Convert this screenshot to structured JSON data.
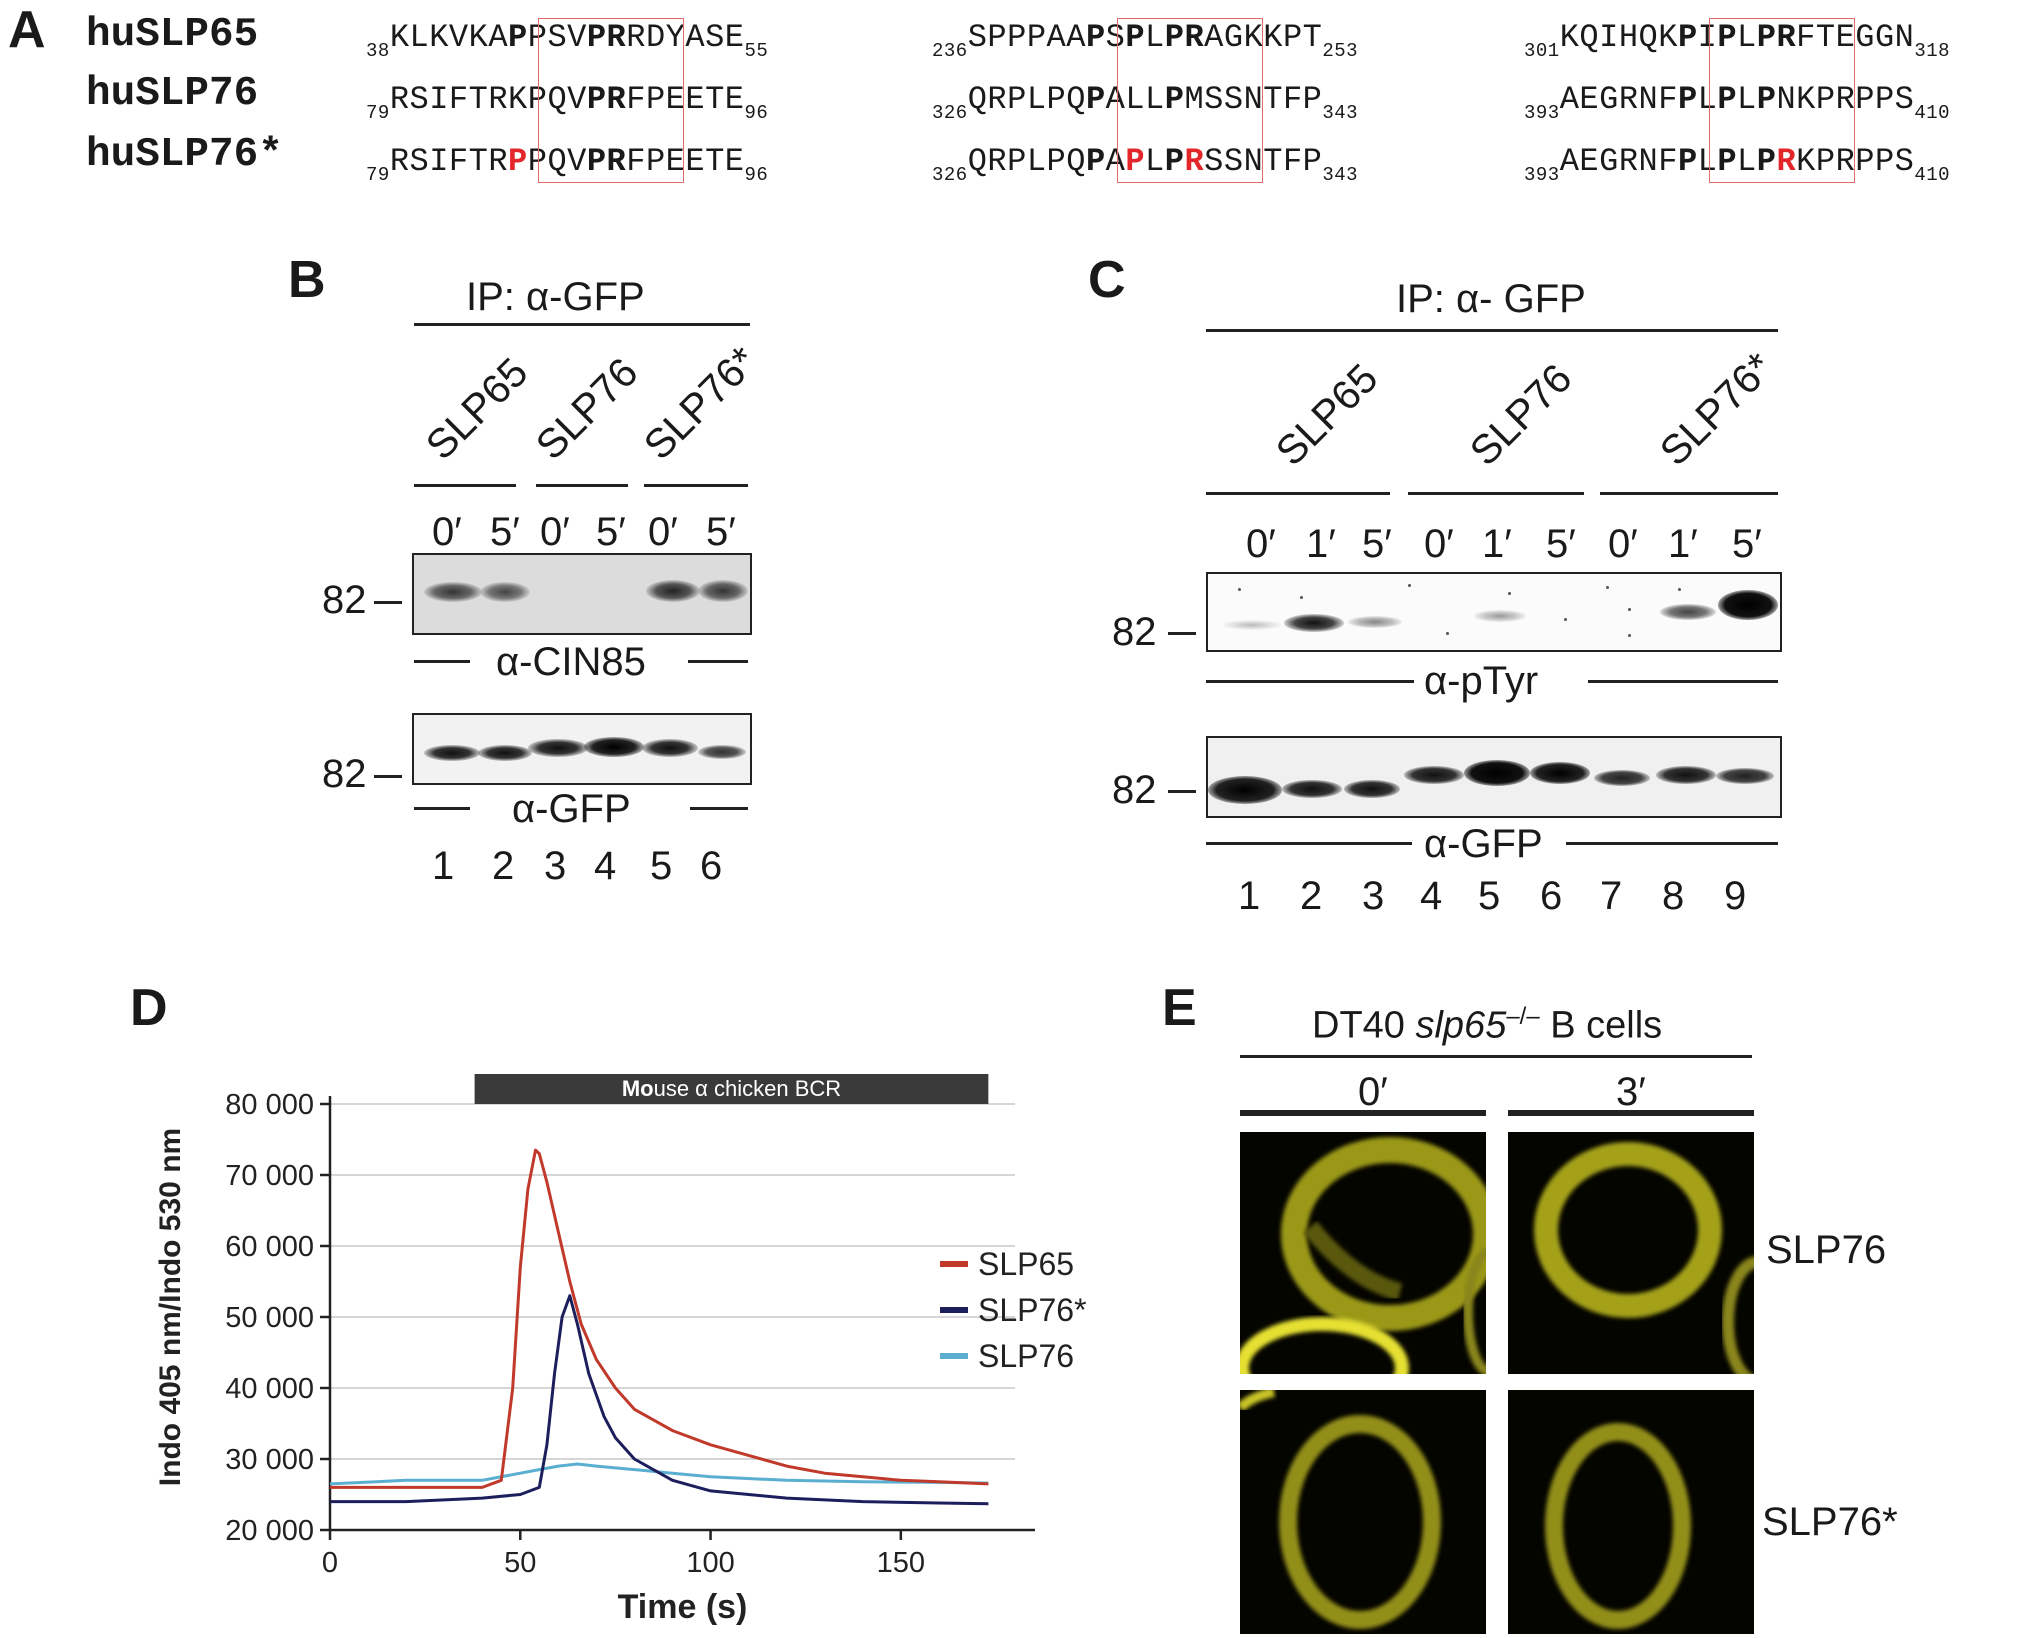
{
  "panels": {
    "A": "A",
    "B": "B",
    "C": "C",
    "D": "D",
    "E": "E"
  },
  "panelA": {
    "names": [
      "huSLP65",
      "huSLP76",
      "huSLP76*"
    ]
  },
  "panelB": {
    "ip": "IP: α-GFP",
    "samples": [
      "SLP65",
      "SLP76",
      "SLP76*"
    ],
    "times": [
      "0′",
      "5′",
      "0′",
      "5′",
      "0′",
      "5′"
    ],
    "mw1": "82",
    "mw2": "82",
    "blot1_label": "α-CIN85",
    "blot2_label": "α-GFP",
    "lanes": [
      "1",
      "2",
      "3",
      "4",
      "5",
      "6"
    ]
  },
  "panelC": {
    "ip": "IP: α- GFP",
    "samples": [
      "SLP65",
      "SLP76",
      "SLP76*"
    ],
    "times": [
      "0′",
      "1′",
      "5′",
      "0′",
      "1′",
      "5′",
      "0′",
      "1′",
      "5′"
    ],
    "mw1": "82",
    "mw2": "82",
    "blot1_label": "α-pTyr",
    "blot2_label": "α-GFP",
    "lanes": [
      "1",
      "2",
      "3",
      "4",
      "5",
      "6",
      "7",
      "8",
      "9"
    ]
  },
  "panelE": {
    "title_pre": "DT40 ",
    "title_gene": "slp65",
    "title_sup": "–/–",
    "title_post": " B cells",
    "times": [
      "0′",
      "3′"
    ],
    "rows": [
      "SLP76",
      "SLP76*"
    ]
  },
  "chart_data": {
    "type": "line",
    "title": "",
    "bar_label_bold": "Mo",
    "bar_label_rest": "use α chicken BCR",
    "stimulus_start": 38,
    "stimulus_end": 173,
    "xlabel": "Time (s)",
    "ylabel": "Indo 405 nm/Indo 530 nm",
    "xlim": [
      0,
      180
    ],
    "ylim": [
      20000,
      80000
    ],
    "xticks": [
      0,
      50,
      100,
      150
    ],
    "yticks": [
      20000,
      30000,
      40000,
      50000,
      60000,
      70000,
      80000
    ],
    "xtick_labels": [
      "0",
      "50",
      "100",
      "150"
    ],
    "ytick_labels": [
      "20 000",
      "30 000",
      "40 000",
      "50 000",
      "60 000",
      "70 000",
      "80 000"
    ],
    "grid": "horizontal",
    "legend_position": "right",
    "series": [
      {
        "name": "SLP65",
        "color": "#c0392b",
        "x": [
          0,
          20,
          40,
          45,
          48,
          50,
          52,
          54,
          55,
          57,
          60,
          63,
          66,
          70,
          75,
          80,
          90,
          100,
          110,
          120,
          130,
          140,
          150,
          160,
          173
        ],
        "y": [
          26000,
          26000,
          26000,
          27000,
          40000,
          57000,
          68000,
          73500,
          73000,
          69000,
          62000,
          55000,
          49000,
          44000,
          40000,
          37000,
          34000,
          32000,
          30500,
          29000,
          28000,
          27500,
          27000,
          26800,
          26500
        ]
      },
      {
        "name": "SLP76*",
        "color": "#1c1f5c",
        "x": [
          0,
          20,
          40,
          50,
          55,
          57,
          59,
          61,
          63,
          65,
          68,
          72,
          75,
          80,
          90,
          100,
          110,
          120,
          140,
          160,
          173
        ],
        "y": [
          24000,
          24000,
          24500,
          25000,
          26000,
          32000,
          42000,
          50000,
          53000,
          49000,
          42000,
          36000,
          33000,
          30000,
          27000,
          25500,
          25000,
          24500,
          24000,
          23800,
          23700
        ]
      },
      {
        "name": "SLP76",
        "color": "#5aaed0",
        "x": [
          0,
          20,
          40,
          50,
          55,
          60,
          65,
          70,
          80,
          90,
          100,
          120,
          140,
          160,
          173
        ],
        "y": [
          26500,
          27000,
          27000,
          28000,
          28500,
          29000,
          29300,
          29000,
          28500,
          28000,
          27500,
          27000,
          26800,
          26700,
          26600
        ]
      }
    ]
  }
}
